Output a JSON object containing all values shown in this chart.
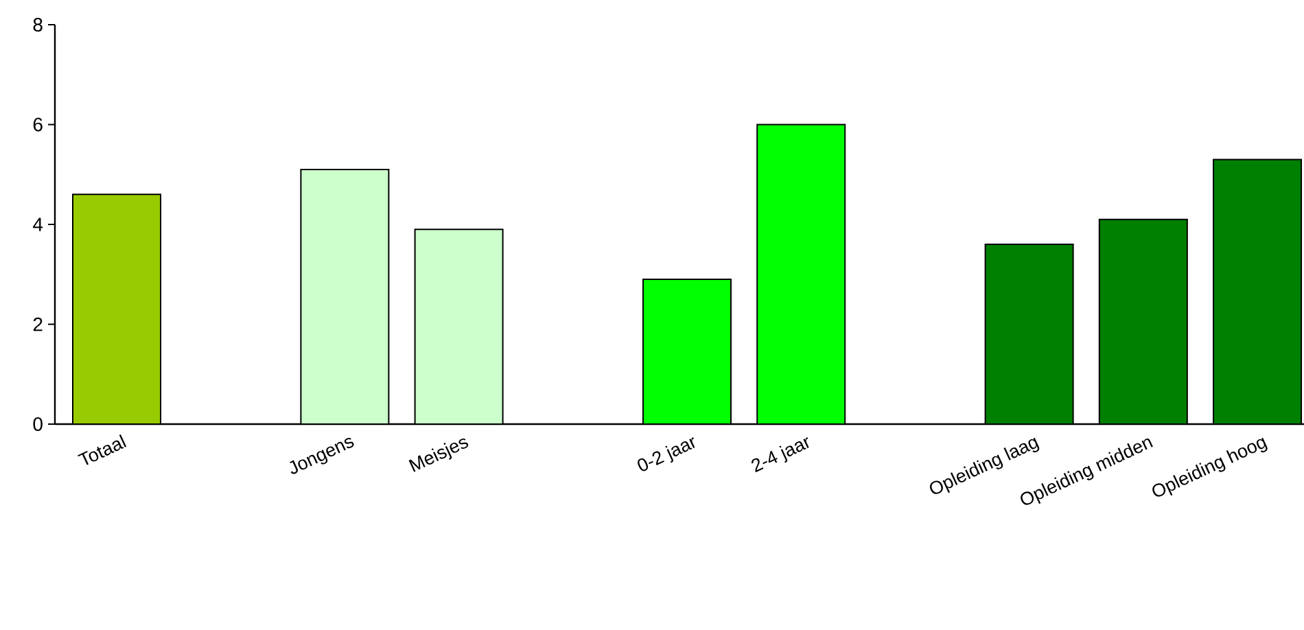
{
  "chart_data": {
    "type": "bar",
    "categories": [
      "Totaal",
      null,
      "Jongens",
      "Meisjes",
      null,
      "0-2 jaar",
      "2-4 jaar",
      null,
      "Opleiding laag",
      "Opleiding midden",
      "Opleiding hoog"
    ],
    "values": [
      4.6,
      null,
      5.1,
      3.9,
      null,
      2.9,
      6.0,
      null,
      3.6,
      4.1,
      5.3
    ],
    "colors": [
      "#99cc00",
      null,
      "#ccffcc",
      "#ccffcc",
      null,
      "#00ff00",
      "#00ff00",
      null,
      "#008000",
      "#008000",
      "#008000"
    ],
    "ylim": [
      0,
      8
    ],
    "yticks": [
      0,
      2,
      4,
      6,
      8
    ]
  }
}
